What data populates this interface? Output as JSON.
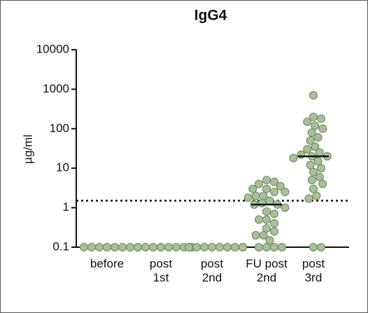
{
  "chart_data": {
    "type": "dot",
    "title": "IgG4",
    "y_label": "µg/ml",
    "categories": [
      "before",
      "post\n1st",
      "post\n2nd",
      "FU post\n2nd",
      "post\n3rd"
    ],
    "values": [
      [
        0.1,
        0.1,
        0.1,
        0.1,
        0.1,
        0.1,
        0.1,
        0.1,
        0.1
      ],
      [
        0.1,
        0.1,
        0.1,
        0.1,
        0.1,
        0.1,
        0.1,
        0.1,
        0.1,
        0.1
      ],
      [
        0.1,
        0.1,
        0.1,
        0.1,
        0.1,
        0.1,
        0.1,
        0.1,
        0.1,
        0.1
      ],
      [
        5,
        4.5,
        4,
        3.5,
        3,
        3,
        2.5,
        2.5,
        2,
        2,
        1.8,
        1.5,
        1.3,
        1.2,
        1.2,
        1,
        0.8,
        0.7,
        0.5,
        0.5,
        0.4,
        0.3,
        0.25,
        0.2,
        0.2,
        0.15,
        0.1,
        0.1,
        0.1,
        0.1
      ],
      [
        700,
        200,
        180,
        150,
        120,
        100,
        80,
        60,
        50,
        35,
        30,
        25,
        22,
        20,
        20,
        18,
        15,
        12,
        10,
        8,
        6,
        5,
        4,
        3,
        2,
        1.7,
        0.1,
        0.1
      ]
    ],
    "medians": [
      null,
      null,
      null,
      1.2,
      20
    ],
    "threshold": 1.5,
    "color": "#a8c098",
    "edge_color": "#6d8560",
    "log_y": true,
    "ylim": [
      0.1,
      10000
    ],
    "yticks": [
      0.1,
      1,
      10,
      100,
      1000,
      10000
    ]
  }
}
